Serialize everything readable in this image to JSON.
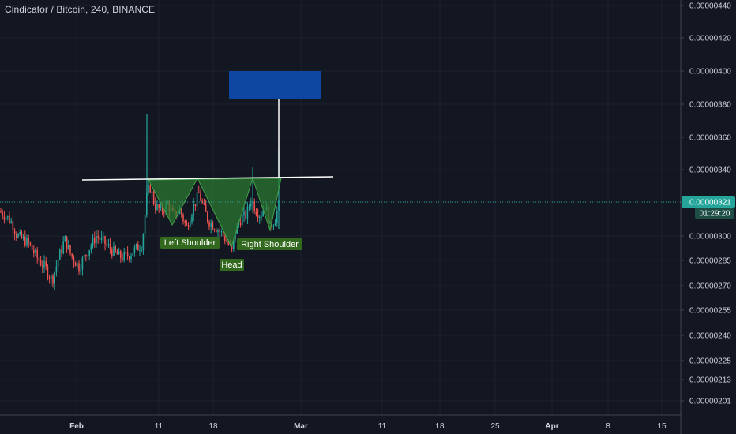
{
  "header": {
    "title": "Cindicator / Bitcoin, 240, BINANCE"
  },
  "colors": {
    "background": "#131722",
    "grid": "#1e222d",
    "up": "#26a69a",
    "down": "#ef5350",
    "pattern_fill": "#2e7d32",
    "label_bg": "#33691e",
    "target_box": "#0d47a1",
    "price_badge": "#26a69a"
  },
  "chart_data": {
    "type": "candlestick",
    "symbol": "Cindicator / Bitcoin",
    "interval": "240",
    "exchange": "BINANCE",
    "y_ticks": [
      "0.00000440",
      "0.00000420",
      "0.00000400",
      "0.00000380",
      "0.00000360",
      "0.00000340",
      "0.00000321",
      "0.00000300",
      "0.00000285",
      "0.00000270",
      "0.00000255",
      "0.00000240",
      "0.00000225",
      "0.00000213",
      "0.00000201"
    ],
    "x_ticks": [
      {
        "label": "Feb",
        "bold": true
      },
      {
        "label": "11",
        "bold": false
      },
      {
        "label": "18",
        "bold": false
      },
      {
        "label": "Mar",
        "bold": true
      },
      {
        "label": "11",
        "bold": false
      },
      {
        "label": "18",
        "bold": false
      },
      {
        "label": "25",
        "bold": false
      },
      {
        "label": "Apr",
        "bold": true
      },
      {
        "label": "8",
        "bold": false
      },
      {
        "label": "15",
        "bold": false
      }
    ],
    "last_price": "0.00000321",
    "countdown": "01:29:20",
    "annotations": {
      "left_shoulder": "Left Shoulder",
      "head": "Head",
      "right_shoulder": "Right Shoulder"
    },
    "neckline_price": 3.33e-06,
    "target_box": {
      "low": 3.83e-06,
      "high": 4e-06
    }
  }
}
